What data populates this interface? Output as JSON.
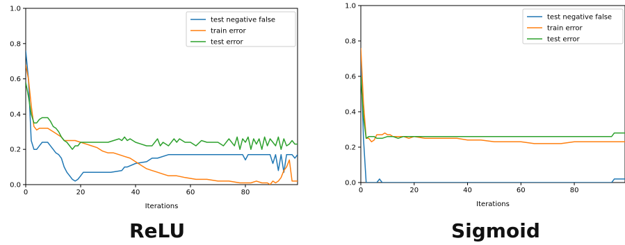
{
  "chart_data": [
    {
      "type": "line",
      "title": "",
      "caption": "ReLU",
      "xlabel": "Iterations",
      "ylabel": "",
      "xlim": [
        0,
        99
      ],
      "ylim": [
        0,
        1.0
      ],
      "xticks": [
        0,
        20,
        40,
        60,
        80
      ],
      "yticks": [
        0.0,
        0.2,
        0.4,
        0.6,
        0.8,
        1.0
      ],
      "ytick_labels": [
        "0.0",
        "0.2",
        "0.4",
        "0.6",
        "0.8",
        "1.0"
      ],
      "legend_position": "top-right",
      "series": [
        {
          "name": "test negative false",
          "color": "#1f77b4",
          "x": [
            0,
            1,
            2,
            3,
            4,
            5,
            6,
            7,
            8,
            9,
            10,
            11,
            12,
            13,
            14,
            15,
            16,
            17,
            18,
            19,
            20,
            21,
            22,
            25,
            28,
            31,
            35,
            36,
            37,
            40,
            44,
            46,
            48,
            52,
            55,
            60,
            65,
            70,
            75,
            79,
            80,
            81,
            82,
            86,
            89,
            90,
            91,
            92,
            93,
            94,
            95,
            96,
            97,
            98,
            99
          ],
          "y": [
            0.76,
            0.6,
            0.25,
            0.2,
            0.2,
            0.22,
            0.24,
            0.24,
            0.24,
            0.22,
            0.2,
            0.18,
            0.17,
            0.15,
            0.1,
            0.07,
            0.05,
            0.03,
            0.02,
            0.03,
            0.05,
            0.07,
            0.07,
            0.07,
            0.07,
            0.07,
            0.08,
            0.1,
            0.1,
            0.12,
            0.13,
            0.15,
            0.15,
            0.17,
            0.17,
            0.17,
            0.17,
            0.17,
            0.17,
            0.17,
            0.14,
            0.17,
            0.17,
            0.17,
            0.17,
            0.12,
            0.17,
            0.08,
            0.17,
            0.07,
            0.17,
            0.17,
            0.17,
            0.15,
            0.17
          ]
        },
        {
          "name": "train error",
          "color": "#ff7f0e",
          "x": [
            0,
            1,
            2,
            3,
            4,
            5,
            6,
            7,
            8,
            9,
            10,
            11,
            12,
            13,
            14,
            15,
            16,
            18,
            20,
            22,
            24,
            26,
            28,
            30,
            32,
            34,
            36,
            38,
            40,
            42,
            44,
            46,
            48,
            50,
            52,
            55,
            58,
            62,
            66,
            70,
            74,
            78,
            80,
            82,
            84,
            86,
            88,
            89,
            90,
            91,
            92,
            93,
            94,
            95,
            96,
            97,
            98,
            99
          ],
          "y": [
            0.68,
            0.6,
            0.45,
            0.33,
            0.31,
            0.32,
            0.32,
            0.32,
            0.32,
            0.31,
            0.3,
            0.29,
            0.28,
            0.27,
            0.25,
            0.25,
            0.25,
            0.25,
            0.24,
            0.23,
            0.22,
            0.21,
            0.19,
            0.18,
            0.18,
            0.17,
            0.16,
            0.15,
            0.13,
            0.11,
            0.09,
            0.08,
            0.07,
            0.06,
            0.05,
            0.05,
            0.04,
            0.03,
            0.03,
            0.02,
            0.02,
            0.01,
            0.01,
            0.01,
            0.02,
            0.01,
            0.01,
            0.0,
            0.02,
            0.01,
            0.02,
            0.04,
            0.08,
            0.1,
            0.14,
            0.02,
            0.02,
            0.02
          ]
        },
        {
          "name": "test error",
          "color": "#2ca02c",
          "x": [
            0,
            1,
            2,
            3,
            4,
            5,
            6,
            7,
            8,
            9,
            10,
            11,
            12,
            13,
            14,
            15,
            16,
            17,
            18,
            19,
            20,
            21,
            22,
            25,
            30,
            34,
            35,
            36,
            37,
            38,
            40,
            42,
            44,
            46,
            48,
            49,
            50,
            52,
            54,
            55,
            56,
            58,
            60,
            62,
            64,
            66,
            68,
            70,
            72,
            74,
            76,
            77,
            78,
            79,
            80,
            81,
            82,
            83,
            84,
            85,
            86,
            87,
            88,
            89,
            90,
            91,
            92,
            93,
            94,
            95,
            96,
            97,
            98,
            99
          ],
          "y": [
            0.58,
            0.5,
            0.4,
            0.35,
            0.35,
            0.37,
            0.38,
            0.38,
            0.38,
            0.36,
            0.33,
            0.32,
            0.3,
            0.27,
            0.25,
            0.24,
            0.22,
            0.2,
            0.22,
            0.22,
            0.24,
            0.24,
            0.24,
            0.24,
            0.24,
            0.26,
            0.25,
            0.27,
            0.25,
            0.26,
            0.24,
            0.23,
            0.22,
            0.22,
            0.26,
            0.22,
            0.24,
            0.22,
            0.26,
            0.24,
            0.26,
            0.24,
            0.24,
            0.22,
            0.25,
            0.24,
            0.24,
            0.24,
            0.22,
            0.26,
            0.22,
            0.27,
            0.2,
            0.26,
            0.24,
            0.27,
            0.2,
            0.26,
            0.23,
            0.26,
            0.2,
            0.27,
            0.22,
            0.26,
            0.24,
            0.22,
            0.27,
            0.2,
            0.26,
            0.22,
            0.23,
            0.25,
            0.23,
            0.23
          ]
        }
      ]
    },
    {
      "type": "line",
      "title": "",
      "caption": "Sigmoid",
      "xlabel": "Iterations",
      "ylabel": "",
      "xlim": [
        0,
        99
      ],
      "ylim": [
        0,
        1.0
      ],
      "xticks": [
        0,
        20,
        40,
        60,
        80
      ],
      "yticks": [
        0.0,
        0.2,
        0.4,
        0.6,
        0.8,
        1.0
      ],
      "ytick_labels": [
        "0.0",
        "0.2",
        "0.4",
        "0.6",
        "0.8",
        "1.0"
      ],
      "legend_position": "top-right",
      "series": [
        {
          "name": "test negative false",
          "color": "#1f77b4",
          "x": [
            0,
            1,
            2,
            3,
            6,
            7,
            8,
            9,
            20,
            40,
            60,
            80,
            94,
            95,
            99
          ],
          "y": [
            0.7,
            0.25,
            0.0,
            0.0,
            0.0,
            0.02,
            0.0,
            0.0,
            0.0,
            0.0,
            0.0,
            0.0,
            0.0,
            0.02,
            0.02
          ]
        },
        {
          "name": "train error",
          "color": "#ff7f0e",
          "x": [
            0,
            1,
            2,
            3,
            4,
            5,
            6,
            7,
            8,
            9,
            10,
            11,
            12,
            14,
            16,
            18,
            20,
            24,
            28,
            32,
            36,
            40,
            45,
            50,
            55,
            60,
            65,
            70,
            75,
            80,
            85,
            90,
            95,
            99
          ],
          "y": [
            0.76,
            0.45,
            0.25,
            0.25,
            0.23,
            0.24,
            0.27,
            0.27,
            0.27,
            0.28,
            0.27,
            0.27,
            0.26,
            0.26,
            0.26,
            0.25,
            0.26,
            0.25,
            0.25,
            0.25,
            0.25,
            0.24,
            0.24,
            0.23,
            0.23,
            0.23,
            0.22,
            0.22,
            0.22,
            0.23,
            0.23,
            0.23,
            0.23,
            0.23
          ]
        },
        {
          "name": "test error",
          "color": "#2ca02c",
          "x": [
            0,
            1,
            2,
            3,
            4,
            5,
            6,
            8,
            10,
            12,
            14,
            16,
            20,
            30,
            40,
            50,
            60,
            70,
            80,
            90,
            94,
            95,
            99
          ],
          "y": [
            0.6,
            0.37,
            0.25,
            0.26,
            0.26,
            0.26,
            0.25,
            0.25,
            0.26,
            0.26,
            0.25,
            0.26,
            0.26,
            0.26,
            0.26,
            0.26,
            0.26,
            0.26,
            0.26,
            0.26,
            0.26,
            0.28,
            0.28
          ]
        }
      ]
    }
  ]
}
